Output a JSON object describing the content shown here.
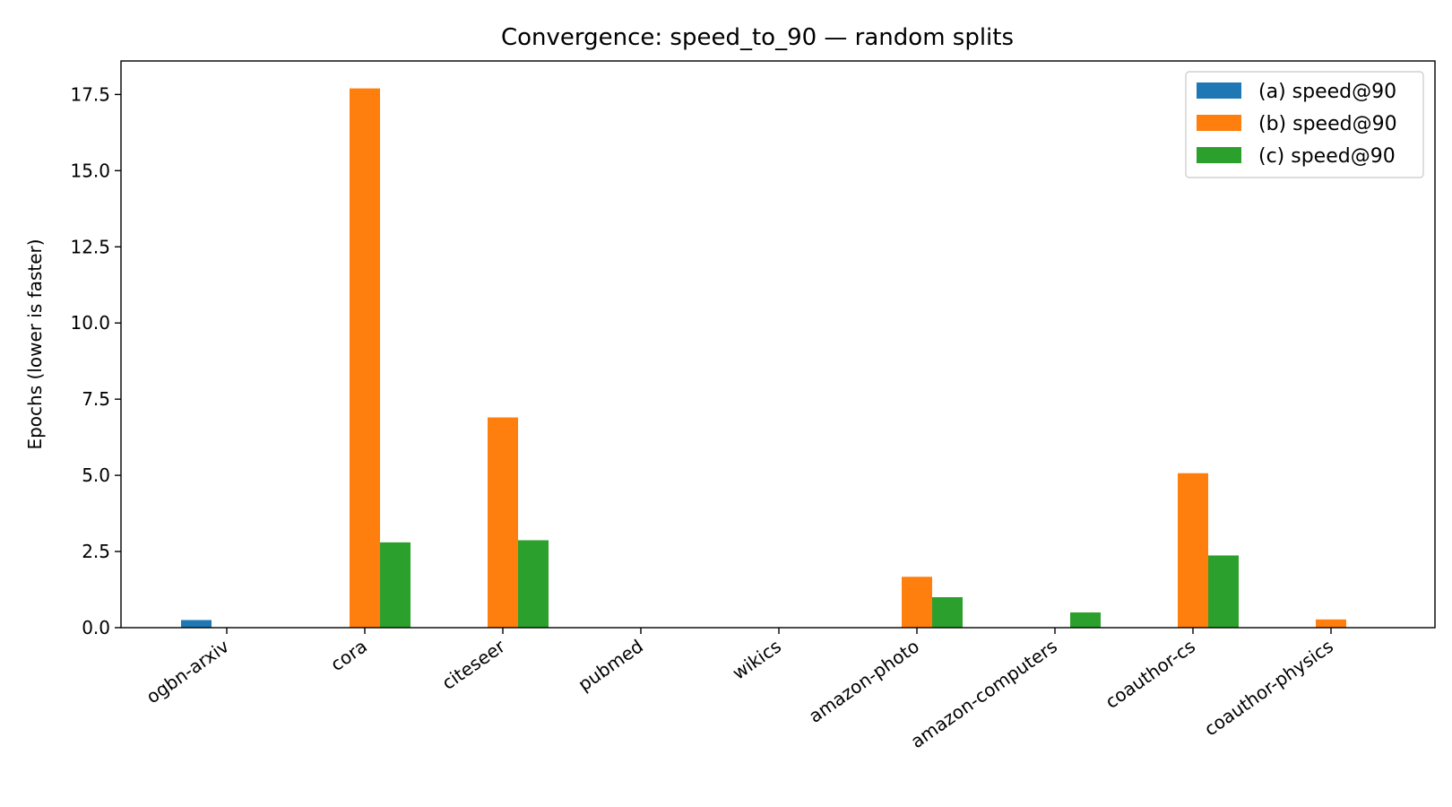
{
  "chart_data": {
    "type": "bar",
    "title": "Convergence: speed_to_90 — random splits",
    "xlabel": "",
    "ylabel": "Epochs (lower is faster)",
    "ylim": [
      0,
      18.6
    ],
    "yticks": [
      "0.0",
      "2.5",
      "5.0",
      "7.5",
      "10.0",
      "12.5",
      "15.0",
      "17.5"
    ],
    "categories": [
      "ogbn-arxiv",
      "cora",
      "citeseer",
      "pubmed",
      "wikics",
      "amazon-photo",
      "amazon-computers",
      "coauthor-cs",
      "coauthor-physics"
    ],
    "series": [
      {
        "name": "(a) speed@90",
        "color": "#1f77b4",
        "values": [
          0.25,
          0,
          0,
          0,
          0,
          0,
          0,
          0,
          0
        ]
      },
      {
        "name": "(b) speed@90",
        "color": "#ff7f0e",
        "values": [
          0,
          17.7,
          6.9,
          0,
          0,
          1.67,
          0,
          5.07,
          0.27
        ]
      },
      {
        "name": "(c) speed@90",
        "color": "#2ca02c",
        "values": [
          0,
          2.8,
          2.87,
          0,
          0,
          1.0,
          0.5,
          2.37,
          0
        ]
      }
    ],
    "grid": false,
    "legend_position": "top-right"
  }
}
